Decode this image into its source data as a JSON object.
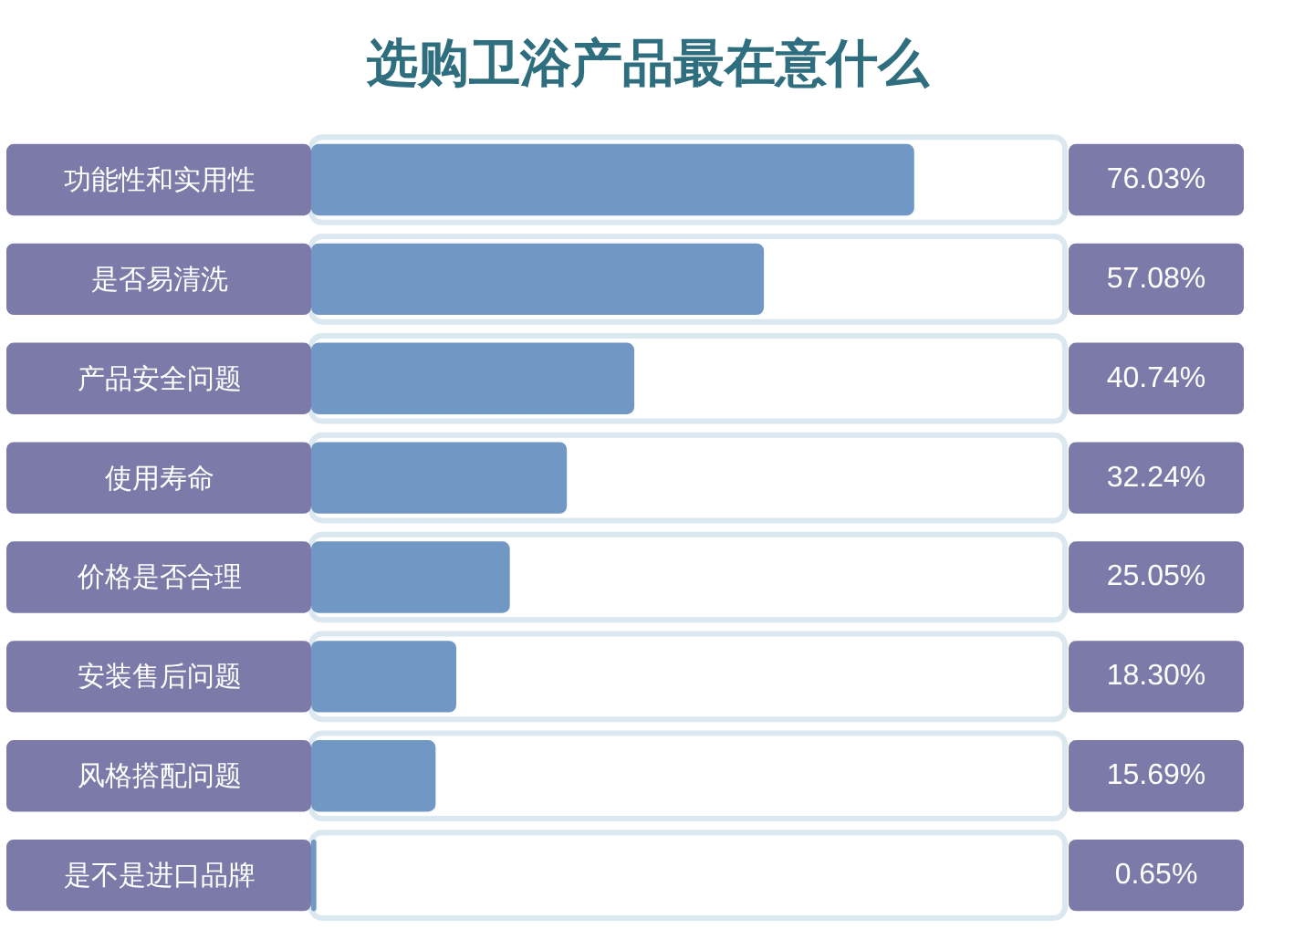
{
  "chart_data": {
    "type": "bar",
    "orientation": "horizontal",
    "title": "选购卫浴产品最在意什么",
    "categories": [
      "功能性和实用性",
      "是否易清洗",
      "产品安全问题",
      "使用寿命",
      "价格是否合理",
      "安装售后问题",
      "风格搭配问题",
      "是不是进口品牌"
    ],
    "values": [
      76.03,
      57.08,
      40.74,
      32.24,
      25.05,
      18.3,
      15.69,
      0.65
    ],
    "value_labels": [
      "76.03%",
      "57.08%",
      "40.74%",
      "32.24%",
      "25.05%",
      "18.30%",
      "15.69%",
      "0.65%"
    ],
    "color": "#7198c5"
  }
}
